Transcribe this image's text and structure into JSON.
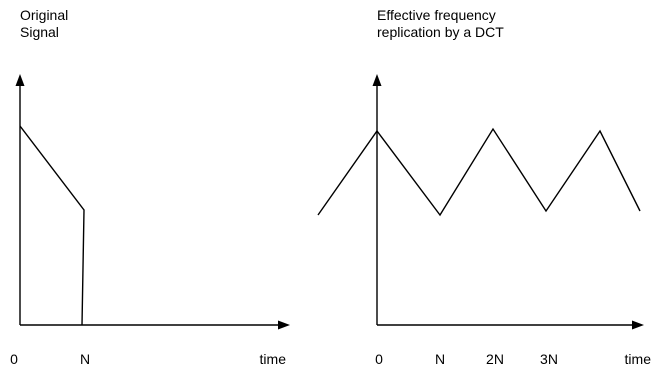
{
  "left_panel": {
    "title_line1": "Original",
    "title_line2": "Signal",
    "tick_labels": [
      "0",
      "N"
    ],
    "axis_label": "time"
  },
  "right_panel": {
    "title_line1": "Effective frequency",
    "title_line2": "replication by a DCT",
    "tick_labels": [
      "0",
      "N",
      "2N",
      "3N"
    ],
    "axis_label": "time"
  },
  "colors": {
    "line": "#000000",
    "background": "#ffffff"
  }
}
